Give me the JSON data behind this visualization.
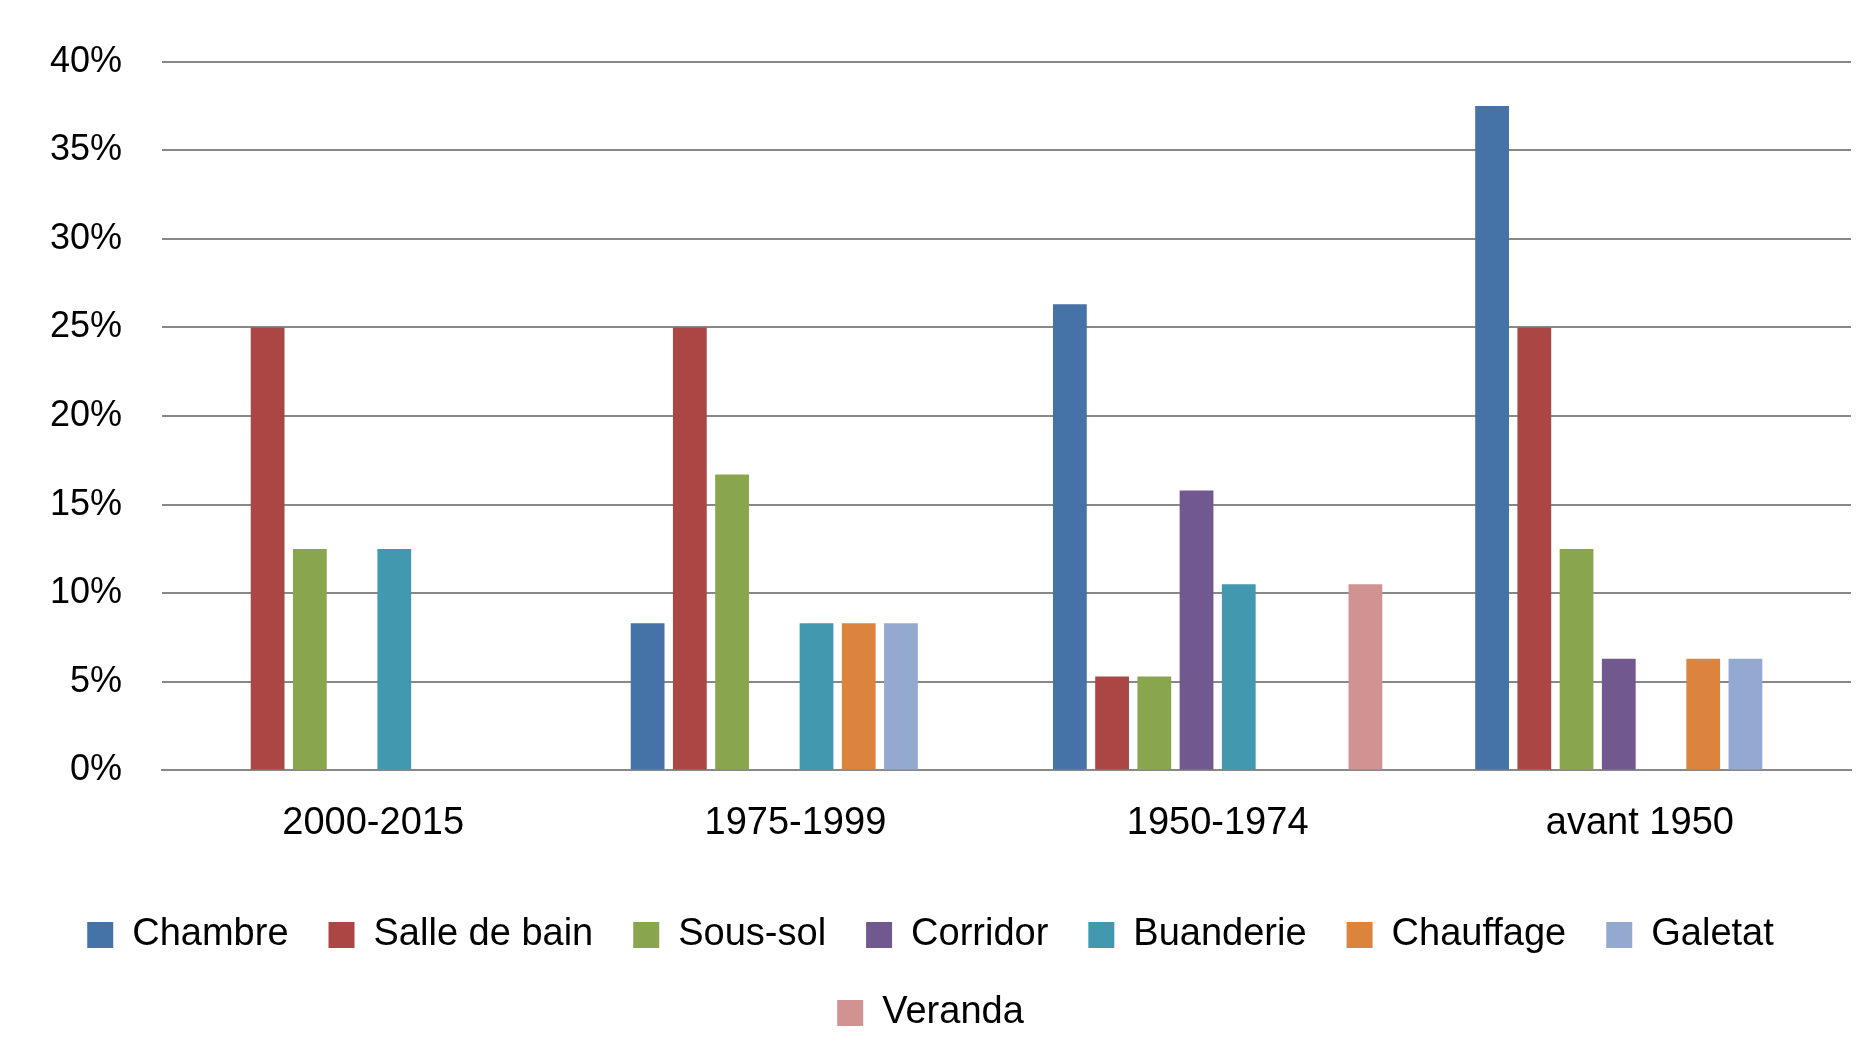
{
  "chart_data": {
    "type": "bar",
    "categories": [
      "2000-2015",
      "1975-1999",
      "1950-1974",
      "avant 1950"
    ],
    "series": [
      {
        "name": "Chambre",
        "color": "#4572a7",
        "values": [
          0,
          8.3,
          26.3,
          37.5
        ]
      },
      {
        "name": "Salle de bain",
        "color": "#aa4643",
        "values": [
          25,
          25,
          5.3,
          25
        ]
      },
      {
        "name": "Sous-sol",
        "color": "#89a54e",
        "values": [
          12.5,
          16.7,
          5.3,
          12.5
        ]
      },
      {
        "name": "Corridor",
        "color": "#71588f",
        "values": [
          0,
          0,
          15.8,
          6.3
        ]
      },
      {
        "name": "Buanderie",
        "color": "#4198af",
        "values": [
          12.5,
          8.3,
          10.5,
          0
        ]
      },
      {
        "name": "Chauffage",
        "color": "#db843d",
        "values": [
          0,
          8.3,
          0,
          6.3
        ]
      },
      {
        "name": "Galetat",
        "color": "#93a9cf",
        "values": [
          0,
          8.3,
          0,
          6.3
        ]
      },
      {
        "name": "Veranda",
        "color": "#d19392",
        "values": [
          0,
          0,
          10.5,
          0
        ]
      }
    ],
    "ylim": [
      0,
      40
    ],
    "yticks": [
      {
        "value": 0,
        "label": "0%"
      },
      {
        "value": 5,
        "label": "5%"
      },
      {
        "value": 10,
        "label": "10%"
      },
      {
        "value": 15,
        "label": "15%"
      },
      {
        "value": 20,
        "label": "20%"
      },
      {
        "value": 25,
        "label": "25%"
      },
      {
        "value": 30,
        "label": "30%"
      },
      {
        "value": 35,
        "label": "35%"
      },
      {
        "value": 40,
        "label": "40%"
      }
    ],
    "grid": "y",
    "legend": "bottom"
  }
}
